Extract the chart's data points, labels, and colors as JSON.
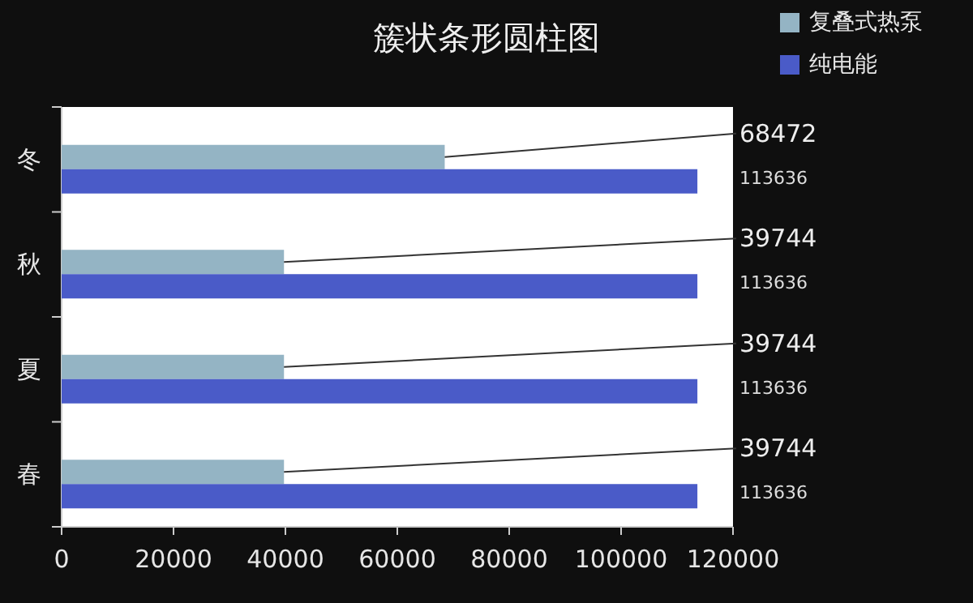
{
  "chart_data": {
    "type": "bar",
    "orientation": "horizontal",
    "title": "簇状条形圆柱图",
    "categories": [
      "冬",
      "秋",
      "夏",
      "春"
    ],
    "series": [
      {
        "name": "复叠式热泵",
        "color": "#94b4c4",
        "values": [
          68472,
          39744,
          39744,
          39744
        ]
      },
      {
        "name": "纯电能",
        "color": "#4a5bc8",
        "values": [
          113636,
          113636,
          113636,
          113636
        ]
      }
    ],
    "xlim": [
      0,
      120000
    ],
    "xticks": [
      0,
      20000,
      40000,
      60000,
      80000,
      100000,
      120000
    ],
    "data_labels": true,
    "legend": "top right",
    "grid": false
  }
}
